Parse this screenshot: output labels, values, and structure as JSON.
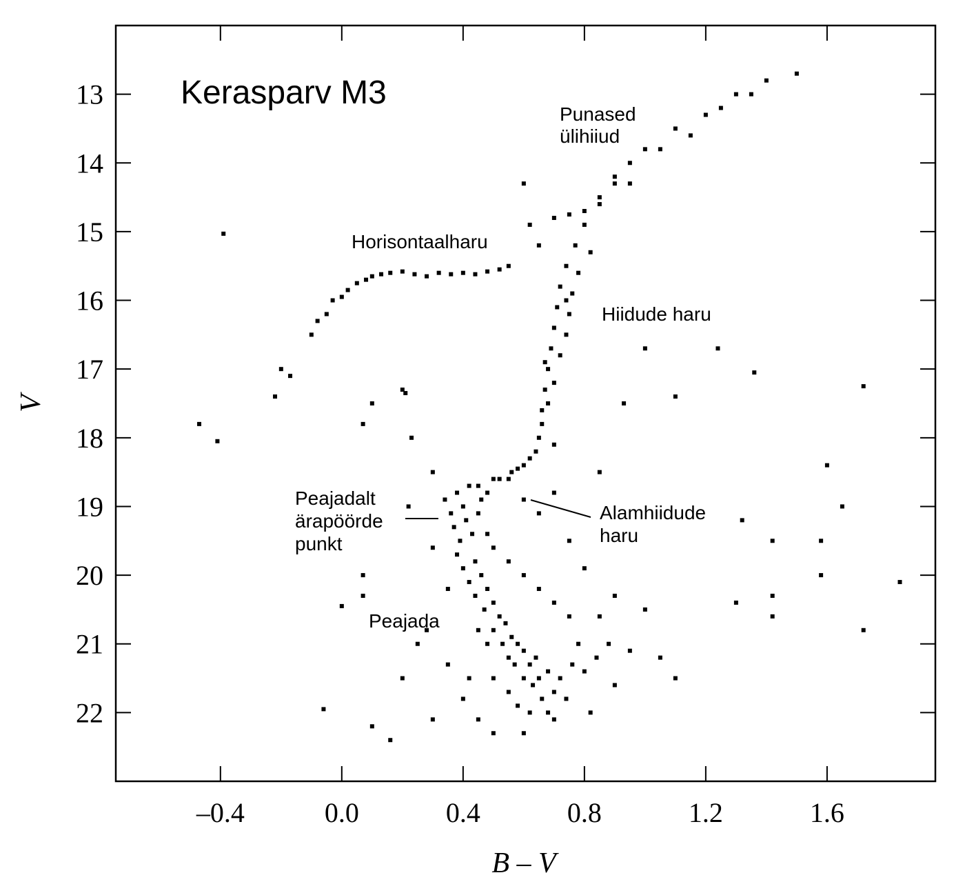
{
  "chart_data": {
    "type": "scatter",
    "title": "Kerasparv M3",
    "x_label": "B – V",
    "y_label": "V",
    "xlim": [
      -0.745,
      1.957
    ],
    "ylim": [
      12.0,
      23.0
    ],
    "y_inverted": true,
    "xticks": [
      {
        "value": -0.4,
        "label": "–0.4"
      },
      {
        "value": 0.0,
        "label": "0.0"
      },
      0.4,
      0.8,
      1.2,
      1.6
    ],
    "yticks": [
      13,
      14,
      15,
      16,
      17,
      18,
      19,
      20,
      21,
      22
    ],
    "annotations": [
      [
        "Punased",
        "ülihiiud"
      ],
      [
        "Horisontaalharu"
      ],
      [
        "Hiidude haru"
      ],
      [
        "Peajadalt",
        "ärapöörde",
        "punkt"
      ],
      [
        "Alamhiidude",
        "haru"
      ],
      [
        "Peajada"
      ]
    ],
    "series": [
      {
        "color": "#000000",
        "x": [
          -0.22,
          -0.2,
          -0.17,
          -0.1,
          -0.08,
          -0.05,
          -0.03,
          0.0,
          0.02,
          0.05,
          0.08,
          0.1,
          0.13,
          0.16,
          0.2,
          0.24,
          0.28,
          0.32,
          0.36,
          0.4,
          0.44,
          0.48,
          0.52,
          0.55,
          0.5,
          0.58,
          0.62,
          0.65,
          0.66,
          0.67,
          0.68,
          0.69,
          0.7,
          0.71,
          0.72,
          0.74,
          0.77,
          0.8,
          0.85,
          0.9,
          0.95,
          1.0,
          1.1,
          1.2,
          1.3,
          1.4,
          1.5,
          0.7,
          0.75,
          0.8,
          0.85,
          0.9,
          0.95,
          1.05,
          1.15,
          1.25,
          1.35,
          -0.39,
          -0.47,
          -0.41,
          1.0,
          1.24,
          1.36,
          1.72,
          1.1,
          0.93,
          1.6,
          1.65,
          1.42,
          1.58,
          1.58,
          1.42,
          1.42,
          1.72,
          1.84,
          1.3,
          1.32,
          -0.06,
          0.0,
          0.07,
          0.07,
          0.07,
          0.1,
          0.2,
          0.21,
          0.1,
          0.16,
          0.6,
          0.62,
          0.65,
          0.34,
          0.36,
          0.37,
          0.38,
          0.39,
          0.4,
          0.41,
          0.42,
          0.43,
          0.44,
          0.45,
          0.46,
          0.38,
          0.4,
          0.42,
          0.44,
          0.46,
          0.47,
          0.48,
          0.5,
          0.5,
          0.52,
          0.53,
          0.54,
          0.55,
          0.56,
          0.57,
          0.58,
          0.6,
          0.6,
          0.62,
          0.63,
          0.64,
          0.65,
          0.66,
          0.68,
          0.7,
          0.72,
          0.74,
          0.76,
          0.5,
          0.48,
          0.45,
          0.55,
          0.58,
          0.62,
          0.68,
          0.78,
          0.8,
          0.84,
          0.88,
          0.75,
          0.7,
          0.65,
          0.6,
          0.55,
          0.5,
          0.85,
          0.9,
          0.95,
          1.05,
          1.1,
          1.0,
          0.35,
          0.3,
          0.28,
          0.25,
          0.2,
          0.4,
          0.45,
          0.5,
          0.6,
          0.7,
          0.82,
          0.9,
          0.3,
          0.35,
          0.42,
          0.48,
          0.52,
          0.56,
          0.6,
          0.65,
          0.7,
          0.75,
          0.8,
          0.85,
          0.23,
          0.3,
          0.22,
          0.66,
          0.68,
          0.7,
          0.72,
          0.74,
          0.75,
          0.67,
          0.64,
          0.7,
          0.76,
          0.78,
          0.82,
          0.74,
          0.6,
          0.55,
          0.45,
          0.48
        ],
        "values": [
          17.4,
          17.0,
          17.1,
          16.5,
          16.3,
          16.2,
          16.0,
          15.95,
          15.85,
          15.75,
          15.7,
          15.65,
          15.62,
          15.6,
          15.58,
          15.62,
          15.65,
          15.6,
          15.62,
          15.6,
          15.62,
          15.58,
          15.55,
          15.5,
          18.6,
          18.45,
          18.3,
          18.0,
          17.6,
          17.3,
          17.0,
          16.7,
          16.4,
          16.1,
          15.8,
          15.5,
          15.2,
          14.9,
          14.6,
          14.3,
          14.0,
          13.8,
          13.5,
          13.3,
          13.0,
          12.8,
          12.7,
          14.8,
          14.75,
          14.7,
          14.5,
          14.2,
          14.3,
          13.8,
          13.6,
          13.2,
          13.0,
          15.03,
          17.8,
          18.05,
          16.7,
          16.7,
          17.05,
          17.25,
          17.4,
          17.5,
          18.4,
          19.0,
          19.5,
          19.5,
          20.0,
          20.3,
          20.6,
          20.8,
          20.1,
          20.4,
          19.2,
          21.95,
          20.45,
          20.0,
          20.3,
          17.8,
          17.5,
          17.3,
          17.35,
          22.2,
          22.4,
          14.3,
          14.9,
          15.2,
          18.9,
          19.1,
          19.3,
          18.8,
          19.5,
          19.0,
          19.2,
          18.7,
          19.4,
          19.8,
          19.1,
          18.9,
          19.7,
          19.9,
          20.1,
          20.3,
          20.0,
          20.5,
          20.2,
          20.4,
          20.8,
          20.6,
          21.0,
          20.7,
          21.2,
          20.9,
          21.3,
          21.0,
          21.5,
          21.1,
          21.3,
          21.6,
          21.2,
          21.5,
          21.8,
          21.4,
          21.7,
          21.5,
          21.8,
          21.3,
          21.5,
          21.0,
          20.8,
          21.7,
          21.9,
          22.0,
          22.0,
          21.0,
          21.4,
          21.2,
          21.0,
          20.6,
          20.4,
          20.2,
          20.0,
          19.8,
          19.6,
          20.6,
          20.3,
          21.1,
          21.2,
          21.5,
          20.5,
          20.2,
          19.6,
          20.8,
          21.0,
          21.5,
          21.8,
          22.1,
          22.3,
          22.3,
          22.1,
          22.0,
          21.6,
          22.1,
          21.3,
          21.5,
          19.4,
          18.6,
          18.5,
          18.9,
          19.1,
          18.8,
          19.5,
          19.9,
          18.5,
          18.0,
          18.5,
          19.0,
          17.8,
          17.5,
          17.2,
          16.8,
          16.5,
          16.2,
          16.9,
          18.2,
          18.1,
          15.9,
          15.6,
          15.3,
          16.0,
          18.4,
          18.6,
          18.7,
          18.8
        ]
      }
    ]
  }
}
